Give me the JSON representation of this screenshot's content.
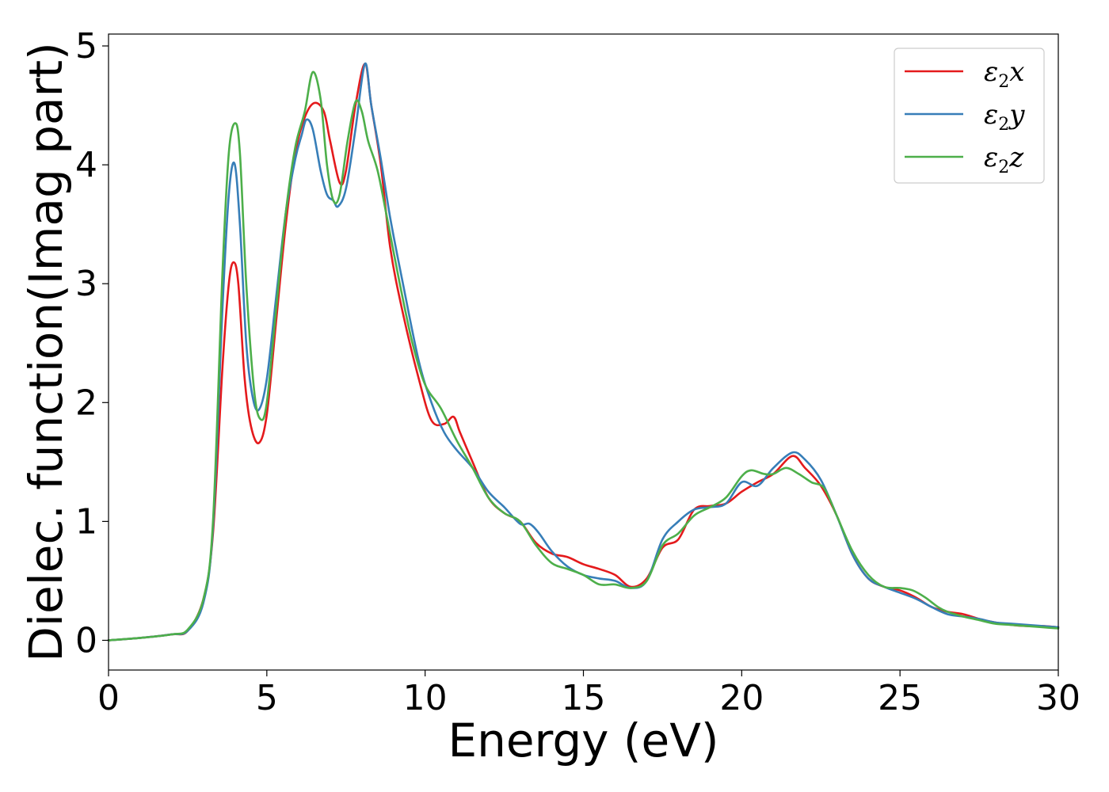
{
  "chart_data": {
    "type": "line",
    "title": "",
    "xlabel": "Energy (eV)",
    "ylabel": "Dielec. function(Imag part)",
    "xlim": [
      0,
      30
    ],
    "ylim": [
      -0.25,
      5.1
    ],
    "xticks": [
      0,
      5,
      10,
      15,
      20,
      25,
      30
    ],
    "yticks": [
      0,
      1,
      2,
      3,
      4,
      5
    ],
    "grid": false,
    "legend_position": "top-right",
    "series": [
      {
        "name": "ε2x",
        "color": "#e41a1c",
        "x": [
          0,
          1,
          2,
          2.5,
          3,
          3.3,
          3.6,
          3.8,
          3.95,
          4.1,
          4.3,
          4.5,
          4.75,
          5.0,
          5.3,
          5.6,
          5.9,
          6.2,
          6.5,
          6.8,
          7.0,
          7.3,
          7.5,
          7.8,
          8.1,
          8.3,
          8.6,
          8.9,
          9.3,
          9.8,
          10.2,
          10.6,
          10.9,
          11.1,
          11.5,
          12.0,
          12.5,
          13.0,
          13.5,
          14.0,
          14.5,
          15.0,
          15.5,
          16.0,
          16.5,
          17.0,
          17.5,
          18.0,
          18.5,
          19.0,
          19.5,
          20.0,
          20.5,
          21.0,
          21.6,
          22.0,
          22.5,
          23.0,
          23.5,
          24.0,
          24.5,
          25.0,
          25.5,
          26.0,
          26.5,
          27.0,
          27.5,
          28.0,
          28.5,
          29.0,
          29.5,
          30.0
        ],
        "values": [
          0.0,
          0.02,
          0.05,
          0.08,
          0.35,
          0.9,
          2.3,
          3.0,
          3.18,
          3.0,
          2.2,
          1.8,
          1.66,
          1.9,
          2.7,
          3.5,
          4.1,
          4.4,
          4.52,
          4.45,
          4.2,
          3.85,
          3.95,
          4.5,
          4.85,
          4.5,
          4.0,
          3.3,
          2.75,
          2.2,
          1.85,
          1.82,
          1.88,
          1.75,
          1.5,
          1.2,
          1.07,
          1.0,
          0.82,
          0.73,
          0.7,
          0.64,
          0.6,
          0.55,
          0.45,
          0.52,
          0.78,
          0.85,
          1.1,
          1.13,
          1.15,
          1.25,
          1.33,
          1.4,
          1.55,
          1.45,
          1.3,
          1.05,
          0.72,
          0.52,
          0.45,
          0.42,
          0.36,
          0.28,
          0.24,
          0.22,
          0.18,
          0.15,
          0.13,
          0.12,
          0.12,
          0.11
        ]
      },
      {
        "name": "ε2y",
        "color": "#377eb8",
        "x": [
          0,
          1,
          2,
          2.5,
          3,
          3.3,
          3.6,
          3.8,
          3.98,
          4.15,
          4.35,
          4.55,
          4.75,
          5.0,
          5.3,
          5.6,
          5.9,
          6.1,
          6.25,
          6.45,
          6.7,
          6.9,
          7.1,
          7.25,
          7.5,
          7.8,
          8.1,
          8.3,
          8.6,
          8.9,
          9.3,
          9.8,
          10.2,
          10.6,
          11.0,
          11.5,
          12.0,
          12.5,
          13.0,
          13.3,
          13.6,
          14.0,
          14.5,
          15.0,
          15.5,
          16.0,
          16.5,
          17.0,
          17.5,
          18.0,
          18.5,
          19.0,
          19.5,
          20.0,
          20.5,
          21.0,
          21.6,
          22.0,
          22.5,
          23.0,
          23.5,
          24.0,
          24.5,
          25.0,
          25.5,
          26.0,
          26.5,
          27.0,
          27.5,
          28.0,
          28.5,
          29.0,
          29.5,
          30.0
        ],
        "values": [
          0.0,
          0.02,
          0.05,
          0.08,
          0.32,
          0.95,
          2.8,
          3.75,
          4.01,
          3.5,
          2.5,
          2.05,
          1.94,
          2.2,
          2.9,
          3.6,
          4.05,
          4.25,
          4.38,
          4.3,
          3.95,
          3.75,
          3.7,
          3.65,
          3.8,
          4.3,
          4.85,
          4.5,
          4.05,
          3.55,
          3.0,
          2.35,
          2.0,
          1.75,
          1.6,
          1.45,
          1.25,
          1.12,
          0.98,
          0.98,
          0.9,
          0.75,
          0.62,
          0.55,
          0.52,
          0.5,
          0.44,
          0.5,
          0.85,
          1.0,
          1.1,
          1.12,
          1.15,
          1.33,
          1.3,
          1.45,
          1.58,
          1.52,
          1.35,
          1.05,
          0.72,
          0.52,
          0.45,
          0.4,
          0.35,
          0.28,
          0.22,
          0.2,
          0.18,
          0.15,
          0.14,
          0.13,
          0.12,
          0.11
        ]
      },
      {
        "name": "ε2z",
        "color": "#4daf4a",
        "x": [
          0,
          1,
          2,
          2.5,
          3,
          3.3,
          3.6,
          3.8,
          4.0,
          4.15,
          4.35,
          4.6,
          4.8,
          5.0,
          5.3,
          5.6,
          5.9,
          6.2,
          6.45,
          6.7,
          6.9,
          7.1,
          7.3,
          7.55,
          7.8,
          8.0,
          8.2,
          8.5,
          8.8,
          9.2,
          9.6,
          10.0,
          10.5,
          11.0,
          11.5,
          12.0,
          12.5,
          13.0,
          13.5,
          14.0,
          14.5,
          15.0,
          15.5,
          16.0,
          16.5,
          17.0,
          17.5,
          18.0,
          18.5,
          19.0,
          19.5,
          20.0,
          20.3,
          20.7,
          21.0,
          21.4,
          21.8,
          22.2,
          22.6,
          23.0,
          23.5,
          24.0,
          24.5,
          25.0,
          25.4,
          25.8,
          26.2,
          26.5,
          27.0,
          27.5,
          28.0,
          28.5,
          29.0,
          29.5,
          30.0
        ],
        "values": [
          0.0,
          0.02,
          0.05,
          0.09,
          0.35,
          1.0,
          3.1,
          4.1,
          4.35,
          4.1,
          3.0,
          2.1,
          1.86,
          2.0,
          2.8,
          3.6,
          4.15,
          4.45,
          4.78,
          4.55,
          4.0,
          3.7,
          3.75,
          4.2,
          4.53,
          4.45,
          4.2,
          3.95,
          3.55,
          3.0,
          2.5,
          2.15,
          1.95,
          1.68,
          1.45,
          1.2,
          1.07,
          1.0,
          0.8,
          0.65,
          0.6,
          0.55,
          0.47,
          0.47,
          0.44,
          0.5,
          0.8,
          0.9,
          1.05,
          1.12,
          1.2,
          1.38,
          1.43,
          1.4,
          1.4,
          1.45,
          1.4,
          1.33,
          1.28,
          1.05,
          0.75,
          0.55,
          0.45,
          0.44,
          0.42,
          0.36,
          0.28,
          0.24,
          0.2,
          0.17,
          0.14,
          0.13,
          0.12,
          0.11,
          0.1
        ]
      }
    ]
  }
}
